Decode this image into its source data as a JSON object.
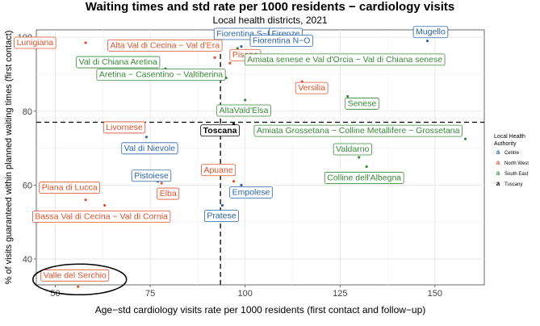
{
  "chart_data": {
    "type": "scatter",
    "title": "Waiting times and std rate per 1000 residents − cardiology visits",
    "subtitle": "Local health districts, 2021",
    "xlabel": "Age−std cardiology visits rate per 1000 residents (first contact and follow−up)",
    "ylabel": "% of visits guaranteed within planned waiting times (first contact)",
    "xlim": [
      45,
      163
    ],
    "ylim": [
      33,
      102
    ],
    "x_ticks": [
      50,
      75,
      100,
      125,
      150
    ],
    "y_ticks": [
      40,
      60,
      80,
      100
    ],
    "grid": true,
    "reference_lines": {
      "x": 93.5,
      "y": 77.0
    },
    "legend": {
      "title": "Local Health Authority",
      "position": "right",
      "entries": [
        {
          "name": "Centre",
          "color": "#2c63ad"
        },
        {
          "name": "North West",
          "color": "#e0522d"
        },
        {
          "name": "South East",
          "color": "#3a8a3a"
        },
        {
          "name": "Tuscany",
          "color": "#000000"
        }
      ]
    },
    "points": [
      {
        "label": "Fiorentina S−E",
        "x": 102,
        "y": 98.5,
        "group": "Centre"
      },
      {
        "label": "Firenze",
        "x": 109,
        "y": 98.5,
        "group": "Centre"
      },
      {
        "label": "Mugello",
        "x": 148,
        "y": 99.0,
        "group": "Centre"
      },
      {
        "label": "Fiorentina N−O",
        "x": 99,
        "y": 97.5,
        "group": "Centre"
      },
      {
        "label": "Val di Nievole",
        "x": 74,
        "y": 73.0,
        "group": "Centre"
      },
      {
        "label": "Pistoiese",
        "x": 77,
        "y": 61.0,
        "group": "Centre"
      },
      {
        "label": "Empolese",
        "x": 99,
        "y": 60.0,
        "group": "Centre"
      },
      {
        "label": "Pratese",
        "x": 94,
        "y": 54.5,
        "group": "Centre"
      },
      {
        "label": "Lunigiana",
        "x": 58,
        "y": 98.5,
        "group": "North West"
      },
      {
        "label": "Alta Val  di Cecina − Val d'Era",
        "x": 92,
        "y": 94.5,
        "group": "North West"
      },
      {
        "label": "Pisana",
        "x": 96,
        "y": 93.0,
        "group": "North West"
      },
      {
        "label": "Versilia",
        "x": 115,
        "y": 88.0,
        "group": "North West"
      },
      {
        "label": "Livornese",
        "x": 72,
        "y": 74.5,
        "group": "North West"
      },
      {
        "label": "Apuane",
        "x": 97,
        "y": 61.0,
        "group": "North West"
      },
      {
        "label": "Elba",
        "x": 78,
        "y": 60.5,
        "group": "North West"
      },
      {
        "label": "Piana di Lucca",
        "x": 58,
        "y": 56.0,
        "group": "North West"
      },
      {
        "label": "Bassa Val di Cecina − Val di Cornia",
        "x": 63,
        "y": 54.5,
        "group": "North West"
      },
      {
        "label": "Valle del Serchio",
        "x": 56,
        "y": 32.5,
        "group": "North West"
      },
      {
        "label": "Val di Chiana Aretina",
        "x": 79,
        "y": 91.5,
        "group": "South East"
      },
      {
        "label": "Amiata senese e Val d'Orcia − Val di Chiana senese",
        "x": 98,
        "y": 97.0,
        "group": "South East"
      },
      {
        "label": "Aretina − Casentino − Valtiberina",
        "x": 95,
        "y": 89.0,
        "group": "South East"
      },
      {
        "label": "AltaVald'Elsa",
        "x": 100,
        "y": 83.0,
        "group": "South East"
      },
      {
        "label": "Senese",
        "x": 127,
        "y": 84.0,
        "group": "South East"
      },
      {
        "label": "Amiata Grossetana − Colline Metallifere − Grossetana",
        "x": 158,
        "y": 72.5,
        "group": "South East"
      },
      {
        "label": "Valdarno",
        "x": 130,
        "y": 67.5,
        "group": "South East"
      },
      {
        "label": "Colline dell'Albegna",
        "x": 132,
        "y": 65.0,
        "group": "South East"
      },
      {
        "label": "Toscana",
        "x": 97,
        "y": 76.5,
        "group": "Tuscany"
      }
    ]
  }
}
